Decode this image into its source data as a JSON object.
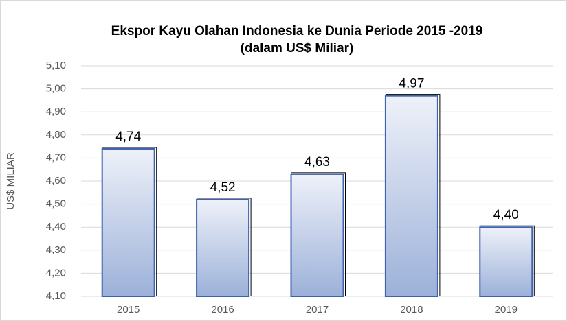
{
  "chart_data": {
    "type": "bar",
    "title": "Ekspor Kayu Olahan Indonesia ke Dunia Periode 2015 -2019",
    "subtitle": "(dalam US$ Miliar)",
    "y_label": "US$ MILIAR",
    "categories": [
      "2015",
      "2016",
      "2017",
      "2018",
      "2019"
    ],
    "values": [
      4.74,
      4.52,
      4.63,
      4.97,
      4.4
    ],
    "value_labels": [
      "4,74",
      "4,52",
      "4,63",
      "4,97",
      "4,40"
    ],
    "color": "#3c62b0",
    "ylim": [
      4.1,
      5.1
    ],
    "yticks": [
      {
        "value": 4.1,
        "label": "4,10"
      },
      {
        "value": 4.2,
        "label": "4,20"
      },
      {
        "value": 4.3,
        "label": "4,30"
      },
      {
        "value": 4.4,
        "label": "4,40"
      },
      {
        "value": 4.5,
        "label": "4,50"
      },
      {
        "value": 4.6,
        "label": "4,60"
      },
      {
        "value": 4.7,
        "label": "4,70"
      },
      {
        "value": 4.8,
        "label": "4,80"
      },
      {
        "value": 4.9,
        "label": "4,90"
      },
      {
        "value": 5.0,
        "label": "5,00"
      },
      {
        "value": 5.1,
        "label": "5,10"
      }
    ],
    "grid": true
  }
}
